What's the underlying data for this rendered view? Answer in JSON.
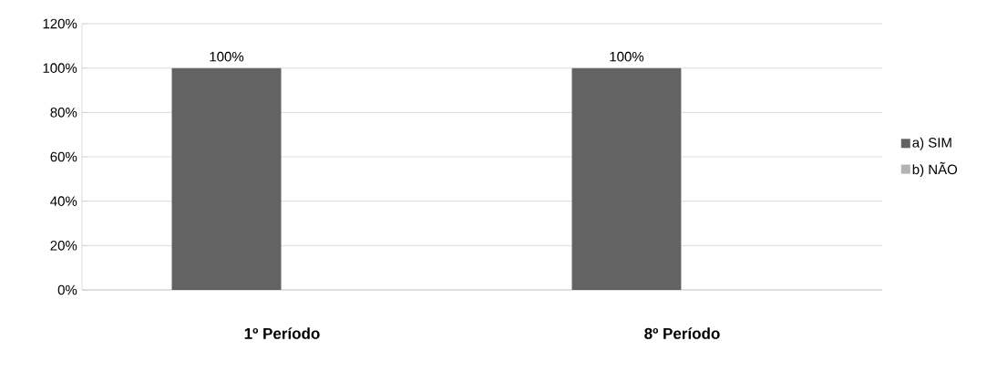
{
  "chart_data": {
    "type": "bar",
    "categories": [
      "1º Período",
      "8º Período"
    ],
    "series": [
      {
        "name": "a) SIM",
        "color": "#636363",
        "values": [
          100,
          100
        ],
        "value_labels": [
          "100%",
          "100%"
        ]
      },
      {
        "name": "b) NÃO",
        "color": "#b3b3b3",
        "values": [
          0,
          0
        ]
      }
    ],
    "ylim": [
      0,
      120
    ],
    "yticks": [
      {
        "value": 0,
        "label": "0%"
      },
      {
        "value": 20,
        "label": "20%"
      },
      {
        "value": 40,
        "label": "40%"
      },
      {
        "value": 60,
        "label": "60%"
      },
      {
        "value": 80,
        "label": "80%"
      },
      {
        "value": 100,
        "label": "100%"
      },
      {
        "value": 120,
        "label": "120%"
      }
    ],
    "grid": "y",
    "legend": "right"
  }
}
